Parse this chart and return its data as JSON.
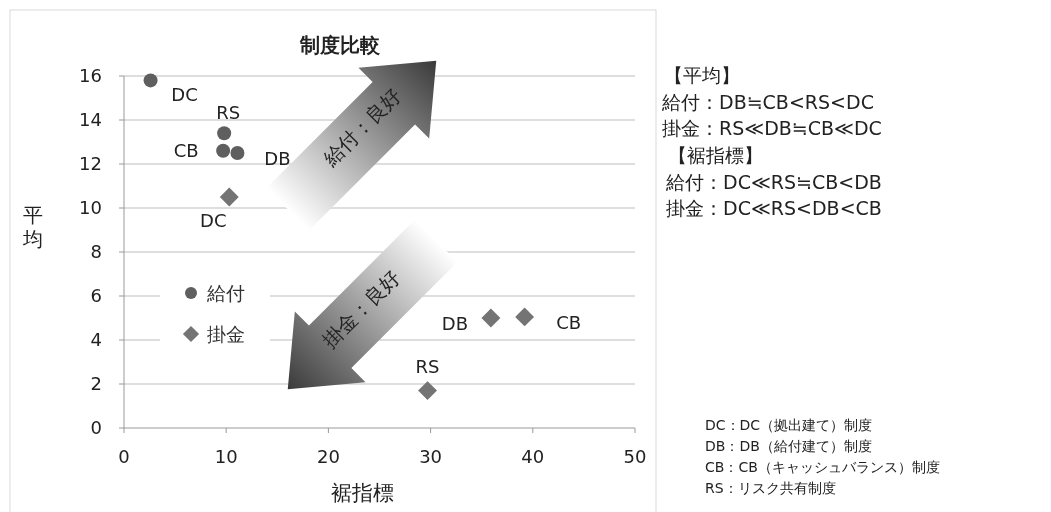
{
  "chart_data": {
    "type": "scatter",
    "title": "制度比較",
    "xlabel": "裾指標",
    "ylabel": "平均",
    "xlim": [
      0,
      50
    ],
    "xticks": [
      0,
      10,
      20,
      30,
      40,
      50
    ],
    "ylim": [
      0,
      16
    ],
    "yticks": [
      0,
      2,
      4,
      6,
      8,
      10,
      12,
      14,
      16
    ],
    "grid": "y",
    "legend": "left",
    "series": [
      {
        "name": "給付",
        "color": "#5f5f5f",
        "marker": "circle",
        "x": [
          2.6,
          9.8,
          9.7,
          11.1
        ],
        "values": [
          15.8,
          13.4,
          12.6,
          12.5
        ]
      },
      {
        "name": "掛金",
        "color": "#747474",
        "marker": "diamond",
        "x": [
          10.3,
          35.9,
          39.2,
          29.7
        ],
        "values": [
          10.5,
          5.0,
          5.05,
          1.7
        ]
      }
    ],
    "annotations": [
      {
        "text": "DC",
        "x": 2.6,
        "y": 15.8
      },
      {
        "text": "RS",
        "x": 9.8,
        "y": 13.4
      },
      {
        "text": "CB",
        "x": 9.7,
        "y": 12.6
      },
      {
        "text": "DB",
        "x": 11.1,
        "y": 12.5
      },
      {
        "text": "DC",
        "x": 10.3,
        "y": 10.5
      },
      {
        "text": "DB",
        "x": 35.9,
        "y": 5.0
      },
      {
        "text": "CB",
        "x": 39.2,
        "y": 5.05
      },
      {
        "text": "RS",
        "x": 29.7,
        "y": 1.7
      },
      "給付：良好",
      "掛金：良好",
      "【平均】",
      "給付：DB≒CB<RS<DC",
      "掛金：RS≪DB≒CB≪DC",
      "【裾指標】",
      "給付：DC≪RS≒CB<DB",
      "掛金：DC≪RS<DB<CB",
      "DC：DC（拠出建て）制度",
      "DB：DB（給付建て）制度",
      "CB：CB（キャッシュバランス）制度",
      "RS：リスク共有制度"
    ]
  }
}
